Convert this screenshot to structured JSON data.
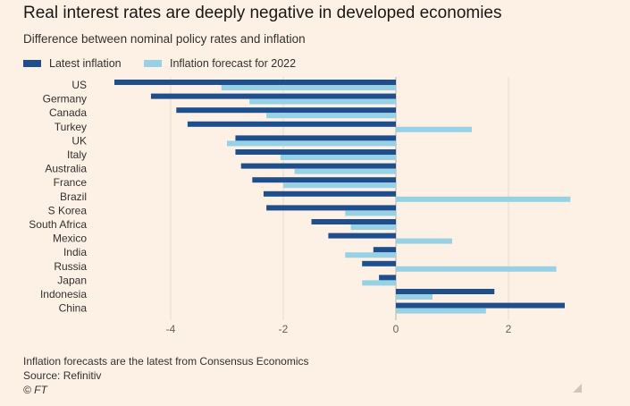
{
  "title": "Real interest rates are deeply negative in developed economies",
  "subtitle": "Difference between nominal policy rates and inflation",
  "legend": [
    {
      "label": "Latest inflation",
      "color": "#1f4e8c"
    },
    {
      "label": "Inflation forecast for 2022",
      "color": "#96d1e6"
    }
  ],
  "footer": {
    "note": "Inflation forecasts are the latest from Consensus Economics",
    "source": "Source: Refinitiv",
    "credit": "© FT"
  },
  "chart_data": {
    "type": "bar",
    "orientation": "horizontal",
    "categories": [
      "US",
      "Germany",
      "Canada",
      "Turkey",
      "UK",
      "Italy",
      "Australia",
      "France",
      "Brazil",
      "S Korea",
      "South Africa",
      "Mexico",
      "India",
      "Russia",
      "Japan",
      "Indonesia",
      "China"
    ],
    "series": [
      {
        "name": "Latest inflation",
        "color": "#1f4e8c",
        "values": [
          -5.0,
          -4.35,
          -3.9,
          -3.7,
          -2.85,
          -2.85,
          -2.75,
          -2.55,
          -2.35,
          -2.3,
          -1.5,
          -1.2,
          -0.4,
          -0.6,
          -0.3,
          1.75,
          3.0
        ]
      },
      {
        "name": "Inflation forecast for 2022",
        "color": "#96d1e6",
        "values": [
          -3.1,
          -2.6,
          -2.3,
          1.35,
          -3.0,
          -2.05,
          -1.8,
          -2.0,
          3.1,
          -0.9,
          -0.8,
          1.0,
          -0.9,
          2.85,
          -0.6,
          0.65,
          1.6
        ]
      }
    ],
    "xticks": [
      -4,
      -2,
      0,
      2
    ],
    "xtick_labels": [
      "-4",
      "-2",
      "0",
      "2"
    ],
    "xlim": [
      -5.2,
      3.3
    ],
    "grid": "vertical"
  }
}
